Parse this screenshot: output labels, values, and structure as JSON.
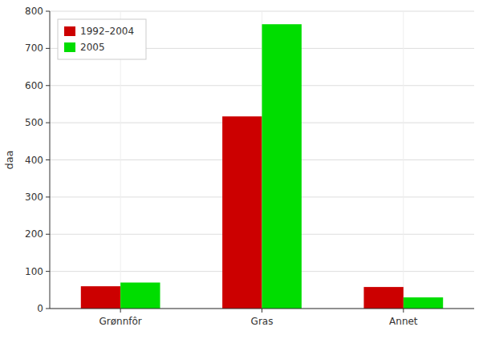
{
  "chart_data": {
    "type": "bar",
    "categories": [
      "Grønnfôr",
      "Gras",
      "Annet"
    ],
    "series": [
      {
        "name": "1992–2004",
        "color": "#cc0000",
        "values": [
          60,
          517,
          58
        ]
      },
      {
        "name": "2005",
        "color": "#00dd00",
        "values": [
          70,
          765,
          30
        ]
      }
    ],
    "y_label": "daa",
    "ylim": [
      0,
      800
    ],
    "yticks": [
      0,
      100,
      200,
      300,
      400,
      500,
      600,
      700,
      800
    ],
    "grid": true,
    "legend": "upper left"
  }
}
